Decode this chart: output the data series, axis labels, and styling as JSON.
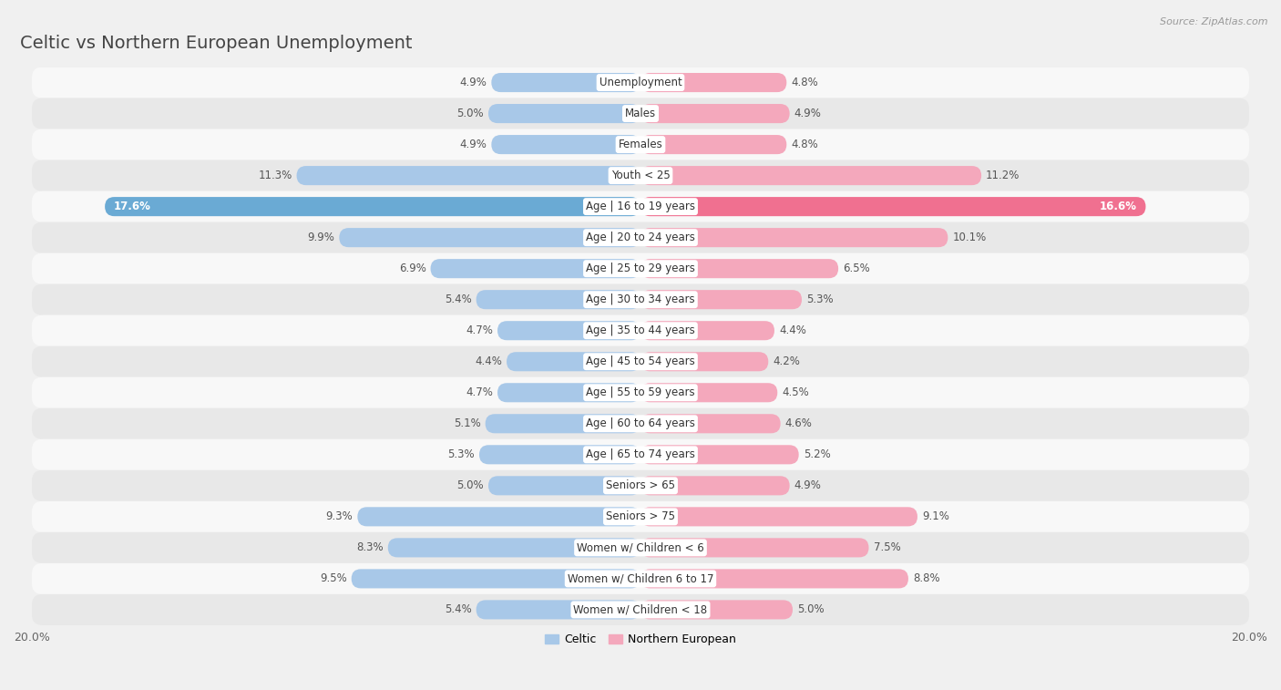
{
  "title": "Celtic vs Northern European Unemployment",
  "source": "Source: ZipAtlas.com",
  "categories": [
    "Unemployment",
    "Males",
    "Females",
    "Youth < 25",
    "Age | 16 to 19 years",
    "Age | 20 to 24 years",
    "Age | 25 to 29 years",
    "Age | 30 to 34 years",
    "Age | 35 to 44 years",
    "Age | 45 to 54 years",
    "Age | 55 to 59 years",
    "Age | 60 to 64 years",
    "Age | 65 to 74 years",
    "Seniors > 65",
    "Seniors > 75",
    "Women w/ Children < 6",
    "Women w/ Children 6 to 17",
    "Women w/ Children < 18"
  ],
  "celtic_values": [
    4.9,
    5.0,
    4.9,
    11.3,
    17.6,
    9.9,
    6.9,
    5.4,
    4.7,
    4.4,
    4.7,
    5.1,
    5.3,
    5.0,
    9.3,
    8.3,
    9.5,
    5.4
  ],
  "northern_values": [
    4.8,
    4.9,
    4.8,
    11.2,
    16.6,
    10.1,
    6.5,
    5.3,
    4.4,
    4.2,
    4.5,
    4.6,
    5.2,
    4.9,
    9.1,
    7.5,
    8.8,
    5.0
  ],
  "celtic_color": "#a8c8e8",
  "northern_color": "#f4a8bc",
  "celtic_highlight_color": "#6aaad4",
  "northern_highlight_color": "#f07090",
  "background_color": "#f0f0f0",
  "row_light_color": "#f8f8f8",
  "row_dark_color": "#e8e8e8",
  "max_value": 20.0,
  "bar_height": 0.62,
  "legend_celtic": "Celtic",
  "legend_northern": "Northern European",
  "title_fontsize": 14,
  "label_fontsize": 8.5,
  "value_fontsize": 8.5
}
